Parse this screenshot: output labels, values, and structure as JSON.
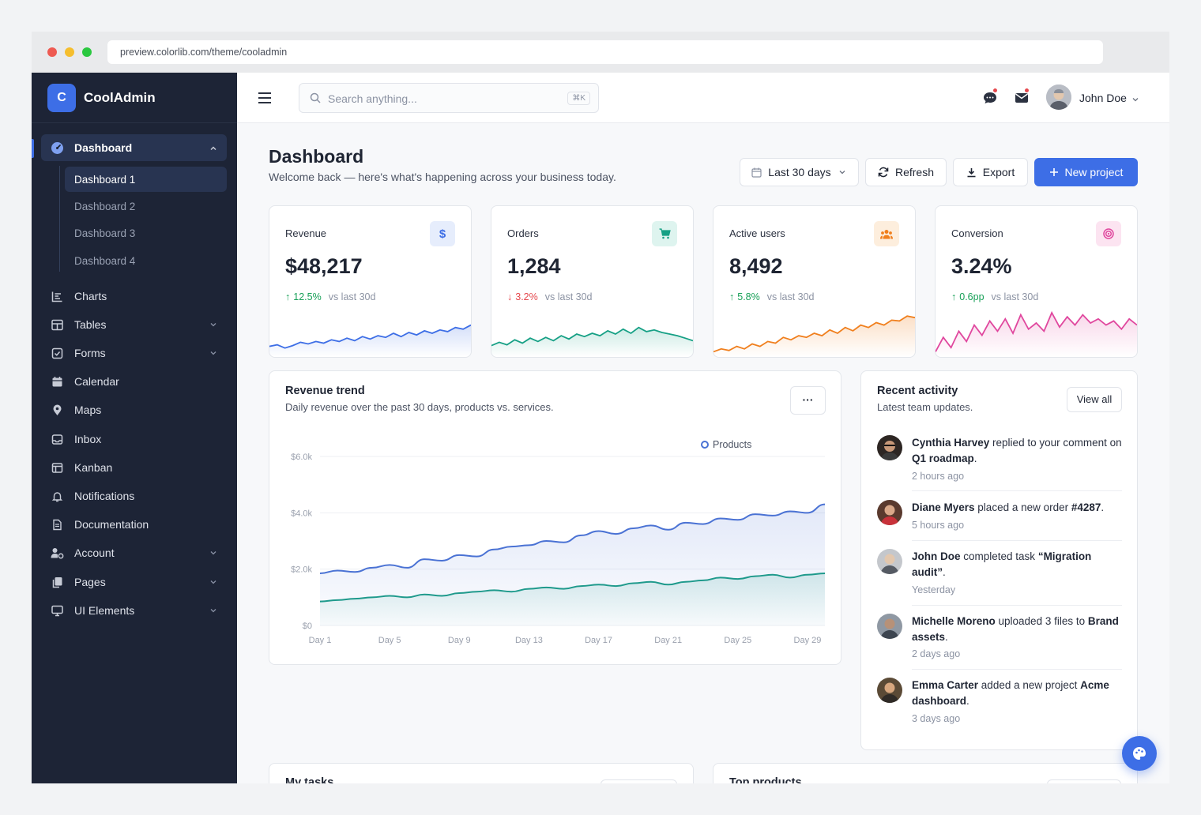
{
  "browser": {
    "url": "preview.colorlib.com/theme/cooladmin"
  },
  "brand": {
    "logo_letter": "C",
    "name": "CoolAdmin"
  },
  "sidebar": {
    "dashboard_label": "Dashboard",
    "dashboard_subitems": [
      "Dashboard 1",
      "Dashboard 2",
      "Dashboard 3",
      "Dashboard 4"
    ],
    "items": [
      {
        "label": "Charts",
        "icon": "chart-icon"
      },
      {
        "label": "Tables",
        "icon": "table-icon"
      },
      {
        "label": "Forms",
        "icon": "checkbox-icon"
      },
      {
        "label": "Calendar",
        "icon": "calendar-icon"
      },
      {
        "label": "Maps",
        "icon": "map-pin-icon"
      },
      {
        "label": "Inbox",
        "icon": "inbox-icon"
      },
      {
        "label": "Kanban",
        "icon": "kanban-icon"
      },
      {
        "label": "Notifications",
        "icon": "bell-icon"
      },
      {
        "label": "Documentation",
        "icon": "document-icon"
      },
      {
        "label": "Account",
        "icon": "user-gear-icon"
      },
      {
        "label": "Pages",
        "icon": "pages-icon"
      },
      {
        "label": "UI Elements",
        "icon": "monitor-icon"
      }
    ]
  },
  "topbar": {
    "search_placeholder": "Search anything...",
    "search_shortcut": "⌘K",
    "user_name": "John Doe"
  },
  "header": {
    "title": "Dashboard",
    "subtitle": "Welcome back — here's what's happening across your business today.",
    "date_range": "Last 30 days",
    "refresh_label": "Refresh",
    "export_label": "Export",
    "new_project_label": "New project"
  },
  "stats": [
    {
      "label": "Revenue",
      "value": "$48,217",
      "delta": "12.5%",
      "direction": "up",
      "compare": "vs last 30d",
      "color": "#3d6ee6",
      "icon": "dollar-icon"
    },
    {
      "label": "Orders",
      "value": "1,284",
      "delta": "3.2%",
      "direction": "down",
      "compare": "vs last 30d",
      "color": "#16a085",
      "icon": "cart-icon"
    },
    {
      "label": "Active users",
      "value": "8,492",
      "delta": "5.8%",
      "direction": "up",
      "compare": "vs last 30d",
      "color": "#f07f1d",
      "icon": "users-icon"
    },
    {
      "label": "Conversion",
      "value": "3.24%",
      "delta": "0.6pp",
      "direction": "up",
      "compare": "vs last 30d",
      "color": "#e0479e",
      "icon": "target-icon"
    }
  ],
  "revenue_trend": {
    "title": "Revenue trend",
    "subtitle": "Daily revenue over the past 30 days, products vs. services.",
    "menu_label": "···"
  },
  "chart_data": {
    "type": "area",
    "x": [
      "Day 1",
      "Day 2",
      "Day 3",
      "Day 4",
      "Day 5",
      "Day 6",
      "Day 7",
      "Day 8",
      "Day 9",
      "Day 10",
      "Day 11",
      "Day 12",
      "Day 13",
      "Day 14",
      "Day 15",
      "Day 16",
      "Day 17",
      "Day 18",
      "Day 19",
      "Day 20",
      "Day 21",
      "Day 22",
      "Day 23",
      "Day 24",
      "Day 25",
      "Day 26",
      "Day 27",
      "Day 28",
      "Day 29",
      "Day 30"
    ],
    "xticks": [
      "Day 1",
      "Day 5",
      "Day 9",
      "Day 13",
      "Day 17",
      "Day 21",
      "Day 25",
      "Day 29"
    ],
    "yticks": [
      "$0",
      "$2.0k",
      "$4.0k",
      "$6.0k"
    ],
    "ylim": [
      0,
      6000
    ],
    "legend_position": "top-right",
    "series": [
      {
        "name": "Products",
        "color": "#4a72d4",
        "values": [
          1850,
          1950,
          1900,
          2050,
          2150,
          2050,
          2350,
          2300,
          2500,
          2450,
          2700,
          2800,
          2850,
          3000,
          2950,
          3200,
          3350,
          3250,
          3450,
          3550,
          3400,
          3650,
          3600,
          3800,
          3750,
          3950,
          3900,
          4050,
          4000,
          4300
        ]
      },
      {
        "color": "#1f9a8c",
        "values": [
          850,
          900,
          950,
          1000,
          1050,
          1000,
          1100,
          1050,
          1150,
          1200,
          1250,
          1200,
          1300,
          1350,
          1300,
          1400,
          1450,
          1400,
          1500,
          1550,
          1450,
          1550,
          1600,
          1700,
          1650,
          1750,
          1800,
          1700,
          1800,
          1850
        ]
      }
    ]
  },
  "recent_activity": {
    "title": "Recent activity",
    "subtitle": "Latest team updates.",
    "view_all_label": "View all",
    "items": [
      {
        "actor": "Cynthia Harvey",
        "action": " replied to your comment on ",
        "target": "Q1 roadmap",
        "suffix": ".",
        "time": "2 hours ago"
      },
      {
        "actor": "Diane Myers",
        "action": " placed a new order ",
        "target": "#4287",
        "suffix": ".",
        "time": "5 hours ago"
      },
      {
        "actor": "John Doe",
        "action": " completed task ",
        "target": "“Migration audit”",
        "suffix": ".",
        "time": "Yesterday"
      },
      {
        "actor": "Michelle Moreno",
        "action": " uploaded 3 files to ",
        "target": "Brand assets",
        "suffix": ".",
        "time": "2 days ago"
      },
      {
        "actor": "Emma Carter",
        "action": " added a new project ",
        "target": "Acme dashboard",
        "suffix": ".",
        "time": "3 days ago"
      }
    ]
  },
  "lower_cards": {
    "tasks_title": "My tasks",
    "products_title": "Top products"
  }
}
